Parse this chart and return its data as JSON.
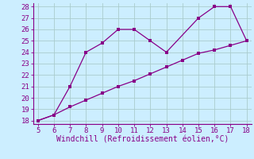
{
  "xlabel": "Windchill (Refroidissement éolien,°C)",
  "x_curve": [
    5,
    6,
    7,
    8,
    9,
    10,
    11,
    12,
    13,
    15,
    16,
    17,
    18
  ],
  "y_curve": [
    18,
    18.5,
    21,
    24,
    24.8,
    26,
    26,
    25,
    24,
    27,
    28,
    28,
    25
  ],
  "x_line": [
    5,
    6,
    7,
    8,
    9,
    10,
    11,
    12,
    13,
    14,
    15,
    16,
    17,
    18
  ],
  "y_line": [
    18,
    18.5,
    19.2,
    19.8,
    20.4,
    21.0,
    21.5,
    22.1,
    22.7,
    23.3,
    23.9,
    24.2,
    24.6,
    25.0
  ],
  "line_color": "#880088",
  "background_color": "#cceeff",
  "grid_color": "#aacccc",
  "xlim": [
    4.7,
    18.3
  ],
  "ylim": [
    17.7,
    28.3
  ],
  "xticks": [
    5,
    6,
    7,
    8,
    9,
    10,
    11,
    12,
    13,
    14,
    15,
    16,
    17,
    18
  ],
  "yticks": [
    18,
    19,
    20,
    21,
    22,
    23,
    24,
    25,
    26,
    27,
    28
  ],
  "tick_fontsize": 6.5,
  "xlabel_fontsize": 7.0,
  "marker_size": 2.5,
  "line_width": 0.9
}
